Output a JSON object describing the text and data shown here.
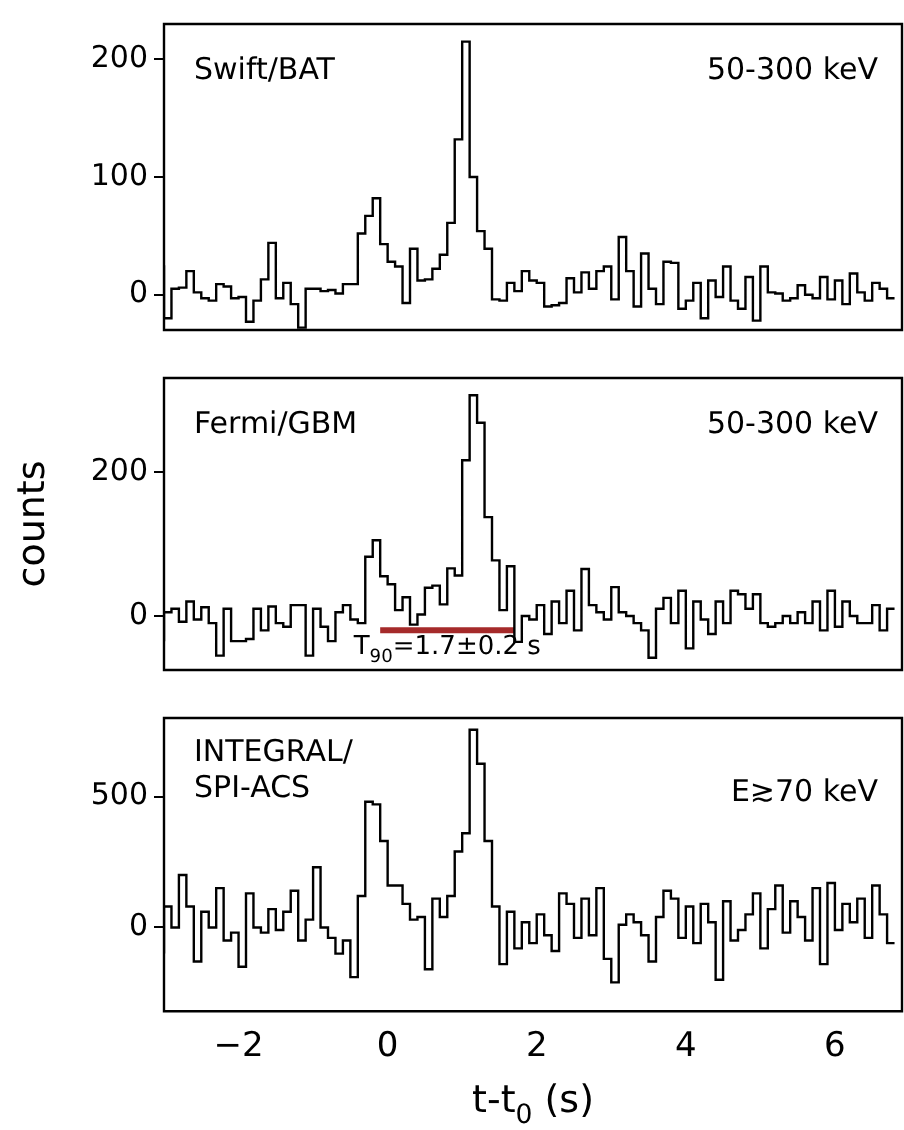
{
  "chart_data": [
    {
      "type": "step",
      "annotations": [
        "Swift/BAT",
        "50-300 keV"
      ],
      "color": "#000000",
      "tick_labels": "y",
      "xlim": [
        -3,
        6.9
      ],
      "xticks": [
        -2,
        0,
        2,
        4,
        6
      ],
      "ylim": [
        -30,
        230
      ],
      "yticks": [
        0,
        100,
        200
      ],
      "x": [
        -3.0,
        -2.9,
        -2.8,
        -2.7,
        -2.6,
        -2.5,
        -2.4,
        -2.3,
        -2.2,
        -2.1,
        -2.0,
        -1.9,
        -1.8,
        -1.7,
        -1.6,
        -1.5,
        -1.4,
        -1.3,
        -1.2,
        -1.1,
        -1.0,
        -0.9,
        -0.8,
        -0.7,
        -0.6,
        -0.5,
        -0.4,
        -0.3,
        -0.2,
        -0.1,
        0.0,
        0.1,
        0.2,
        0.3,
        0.4,
        0.5,
        0.6,
        0.7,
        0.8,
        0.9,
        1.0,
        1.1,
        1.2,
        1.3,
        1.4,
        1.5,
        1.6,
        1.7,
        1.8,
        1.9,
        2.0,
        2.1,
        2.2,
        2.3,
        2.4,
        2.5,
        2.6,
        2.7,
        2.8,
        2.9,
        3.0,
        3.1,
        3.2,
        3.3,
        3.4,
        3.5,
        3.6,
        3.7,
        3.8,
        3.9,
        4.0,
        4.1,
        4.2,
        4.3,
        4.4,
        4.5,
        4.6,
        4.7,
        4.8,
        4.9,
        5.0,
        5.1,
        5.2,
        5.3,
        5.4,
        5.5,
        5.6,
        5.7,
        5.8,
        5.9,
        6.0,
        6.1,
        6.2,
        6.3,
        6.4,
        6.5,
        6.6,
        6.7,
        6.8
      ],
      "values": [
        25,
        -20,
        5,
        6,
        20,
        2,
        -3,
        -5,
        9,
        7,
        -3,
        -2,
        -23,
        -5,
        13,
        44,
        -3,
        10,
        -8,
        -28,
        5,
        5,
        3,
        4,
        1,
        9,
        9,
        52,
        67,
        82,
        43,
        28,
        24,
        -7,
        39,
        12,
        13,
        22,
        34,
        61,
        132,
        215,
        100,
        54,
        39,
        -4,
        -5,
        10,
        3,
        20,
        12,
        10,
        -10,
        -9,
        -7,
        14,
        2,
        19,
        5,
        20,
        24,
        -4,
        49,
        20,
        -10,
        35,
        5,
        -8,
        28,
        27,
        -12,
        -5,
        10,
        -20,
        12,
        -2,
        24,
        -5,
        -12,
        15,
        -22,
        24,
        2,
        1,
        -5,
        -3,
        8,
        0,
        -3,
        15,
        -4,
        12,
        -8,
        18,
        2,
        -5,
        10,
        5,
        -3
      ]
    },
    {
      "type": "step",
      "annotations": [
        "Fermi/GBM",
        "50-300 keV",
        "T$_{90}$=1.7±0.2 s"
      ],
      "tick_labels": "y",
      "ylabel": "counts",
      "series": [
        {
          "type": "line",
          "color": "#a52a2a",
          "x": [
            -0.1,
            1.7
          ],
          "values": [
            -20,
            -20
          ]
        }
      ],
      "color": "#000000",
      "xlim": [
        -3,
        6.9
      ],
      "xticks": [
        -2,
        0,
        2,
        4,
        6
      ],
      "ylim": [
        -75,
        330
      ],
      "yticks": [
        0,
        200
      ],
      "x": [
        -3.0,
        -2.9,
        -2.8,
        -2.7,
        -2.6,
        -2.5,
        -2.4,
        -2.3,
        -2.2,
        -2.1,
        -2.0,
        -1.9,
        -1.8,
        -1.7,
        -1.6,
        -1.5,
        -1.4,
        -1.3,
        -1.2,
        -1.1,
        -1.0,
        -0.9,
        -0.8,
        -0.7,
        -0.6,
        -0.5,
        -0.4,
        -0.3,
        -0.2,
        -0.1,
        0.0,
        0.1,
        0.2,
        0.3,
        0.4,
        0.5,
        0.6,
        0.7,
        0.8,
        0.9,
        1.0,
        1.1,
        1.2,
        1.3,
        1.4,
        1.5,
        1.6,
        1.7,
        1.8,
        1.9,
        2.0,
        2.1,
        2.2,
        2.3,
        2.4,
        2.5,
        2.6,
        2.7,
        2.8,
        2.9,
        3.0,
        3.1,
        3.2,
        3.3,
        3.4,
        3.5,
        3.6,
        3.7,
        3.8,
        3.9,
        4.0,
        4.1,
        4.2,
        4.3,
        4.4,
        4.5,
        4.6,
        4.7,
        4.8,
        4.9,
        5.0,
        5.1,
        5.2,
        5.3,
        5.4,
        5.5,
        5.6,
        5.7,
        5.8,
        5.9,
        6.0,
        6.1,
        6.2,
        6.3,
        6.4,
        6.5,
        6.6,
        6.7,
        6.8
      ],
      "values": [
        -35,
        5,
        10,
        -8,
        20,
        -5,
        12,
        -10,
        -55,
        10,
        -35,
        -35,
        -32,
        10,
        -20,
        13,
        -10,
        -15,
        15,
        15,
        -55,
        10,
        -15,
        -35,
        5,
        15,
        -5,
        -10,
        82,
        105,
        55,
        44,
        8,
        26,
        -12,
        2,
        39,
        42,
        16,
        66,
        56,
        216,
        306,
        268,
        137,
        77,
        8,
        69,
        -36,
        0,
        -5,
        15,
        -25,
        20,
        -10,
        35,
        -20,
        65,
        15,
        5,
        -5,
        40,
        5,
        0,
        -10,
        -20,
        -58,
        10,
        25,
        -10,
        35,
        -45,
        20,
        -5,
        -25,
        20,
        -10,
        35,
        30,
        10,
        30,
        -10,
        -15,
        -10,
        0,
        -10,
        5,
        -10,
        20,
        -20,
        35,
        -15,
        20,
        0,
        -10,
        -10,
        15,
        -20,
        10
      ]
    },
    {
      "type": "step",
      "annotations": [
        "INTEGRAL/\nSPI-ACS",
        "E≳70 keV"
      ],
      "color": "#000000",
      "xlabel": "t-t$_{0}$ (s)",
      "xlim": [
        -3,
        6.9
      ],
      "xticks": [
        {
          "value": -2,
          "label": "−2"
        },
        0,
        2,
        4,
        6
      ],
      "ylim": [
        -320,
        800
      ],
      "yticks": [
        0,
        500
      ],
      "x": [
        -3.0,
        -2.9,
        -2.8,
        -2.7,
        -2.6,
        -2.5,
        -2.4,
        -2.3,
        -2.2,
        -2.1,
        -2.0,
        -1.9,
        -1.8,
        -1.7,
        -1.6,
        -1.5,
        -1.4,
        -1.3,
        -1.2,
        -1.1,
        -1.0,
        -0.9,
        -0.8,
        -0.7,
        -0.6,
        -0.5,
        -0.4,
        -0.3,
        -0.2,
        -0.1,
        0.0,
        0.1,
        0.2,
        0.3,
        0.4,
        0.5,
        0.6,
        0.7,
        0.8,
        0.9,
        1.0,
        1.1,
        1.2,
        1.3,
        1.4,
        1.5,
        1.6,
        1.7,
        1.8,
        1.9,
        2.0,
        2.1,
        2.2,
        2.3,
        2.4,
        2.5,
        2.6,
        2.7,
        2.8,
        2.9,
        3.0,
        3.1,
        3.2,
        3.3,
        3.4,
        3.5,
        3.6,
        3.7,
        3.8,
        3.9,
        4.0,
        4.1,
        4.2,
        4.3,
        4.4,
        4.5,
        4.6,
        4.7,
        4.8,
        4.9,
        5.0,
        5.1,
        5.2,
        5.3,
        5.4,
        5.5,
        5.6,
        5.7,
        5.8,
        5.9,
        6.0,
        6.1,
        6.2,
        6.3,
        6.4,
        6.5,
        6.6,
        6.7,
        6.8
      ],
      "values": [
        -100,
        80,
        0,
        200,
        80,
        -130,
        60,
        0,
        150,
        -50,
        -20,
        -150,
        130,
        0,
        -20,
        70,
        -10,
        60,
        140,
        -50,
        30,
        230,
        0,
        -40,
        -100,
        -50,
        -190,
        120,
        480,
        470,
        330,
        160,
        160,
        90,
        30,
        40,
        -160,
        110,
        40,
        120,
        290,
        360,
        755,
        625,
        330,
        80,
        -140,
        60,
        -80,
        20,
        -60,
        50,
        -30,
        -90,
        130,
        90,
        -40,
        110,
        -30,
        150,
        -120,
        -210,
        10,
        50,
        20,
        -30,
        -130,
        40,
        140,
        110,
        -40,
        80,
        -60,
        90,
        20,
        -200,
        100,
        -50,
        -10,
        50,
        130,
        -80,
        70,
        160,
        -20,
        100,
        40,
        -50,
        150,
        -140,
        170,
        -10,
        90,
        20,
        110,
        -40,
        160,
        50,
        -60
      ]
    }
  ]
}
